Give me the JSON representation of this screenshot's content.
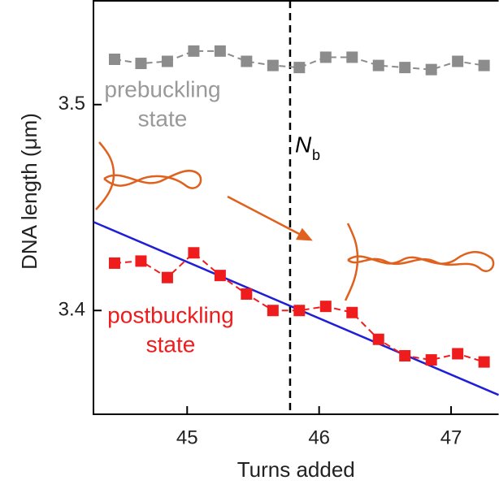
{
  "chart_data": {
    "type": "line",
    "x_label": "Turns added",
    "y_label": "DNA length (μm)",
    "x": [
      44.45,
      44.65,
      44.85,
      45.05,
      45.25,
      45.45,
      45.65,
      45.85,
      46.05,
      46.25,
      46.45,
      46.65,
      46.85,
      47.05,
      47.25
    ],
    "series": [
      {
        "color": "#8c8c8c",
        "values": [
          3.522,
          3.52,
          3.521,
          3.526,
          3.526,
          3.521,
          3.519,
          3.518,
          3.523,
          3.523,
          3.519,
          3.518,
          3.517,
          3.521,
          3.519
        ]
      },
      {
        "color": "#ee1c1c",
        "values": [
          3.423,
          3.424,
          3.416,
          3.428,
          3.417,
          3.408,
          3.4,
          3.4,
          3.402,
          3.399,
          3.386,
          3.378,
          3.376,
          3.379,
          3.375
        ]
      }
    ],
    "fit": {
      "color": "#1f1fd6",
      "x": [
        44.29,
        47.36
      ],
      "values": [
        3.443,
        3.359
      ]
    },
    "threshold": {
      "x": 45.78,
      "text": "N",
      "subscript": "b"
    },
    "annotations": [
      {
        "lines": [
          "prebuckling",
          "state"
        ],
        "color": "#999999"
      },
      {
        "lines": [
          "postbuckling",
          "state"
        ],
        "color": "#ee1c1c"
      }
    ],
    "xlim": [
      44.29,
      47.36
    ],
    "ylim": [
      3.3496,
      3.5504
    ],
    "xticks": [
      45,
      46,
      47
    ],
    "yticks": [
      3.4,
      3.5
    ]
  }
}
